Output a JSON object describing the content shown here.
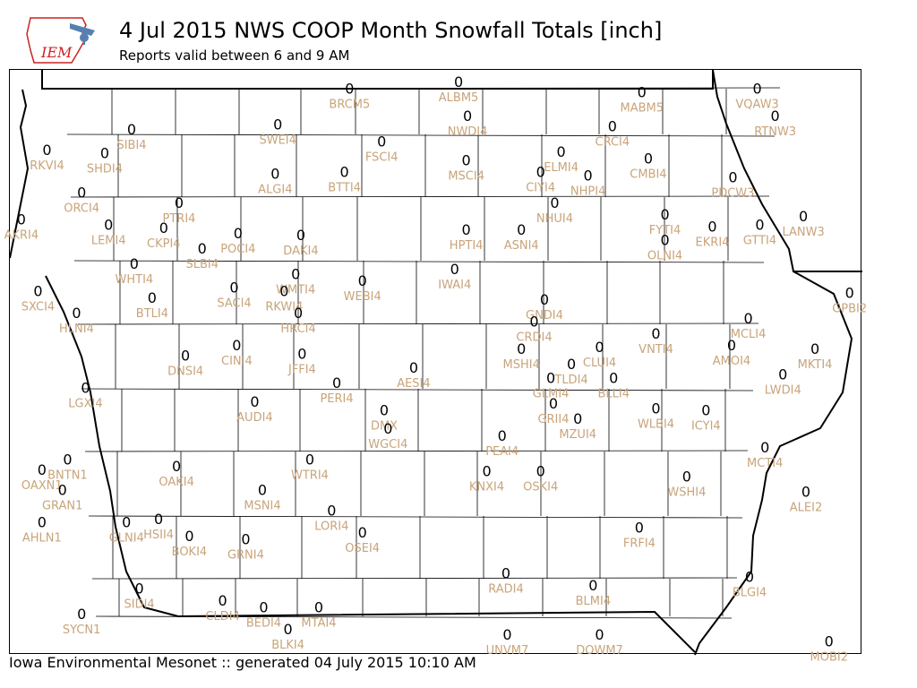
{
  "header": {
    "logo_text": "IEM",
    "title": "4 Jul 2015 NWS COOP Month Snowfall Totals [inch]",
    "subtitle": "Reports valid between 6 and 9 AM"
  },
  "footer": {
    "text": "Iowa Environmental Mesonet :: generated 04 July 2015 10:10 AM"
  },
  "colors": {
    "value": "#000000",
    "station": "#c8a47a",
    "logo_red": "#cc2222",
    "logo_blue": "#5580b0"
  },
  "stations": [
    {
      "id": "SIBI4",
      "value": "0",
      "x": -96.0,
      "y": 43.34
    },
    {
      "id": "BRCM5",
      "value": "0",
      "x": -94.3,
      "y": 43.58
    },
    {
      "id": "ALBM5",
      "value": "0",
      "x": -93.45,
      "y": 43.62
    },
    {
      "id": "NWDI4",
      "value": "0",
      "x": -93.38,
      "y": 43.42
    },
    {
      "id": "SWEI4",
      "value": "0",
      "x": -94.86,
      "y": 43.37
    },
    {
      "id": "MABM5",
      "value": "0",
      "x": -92.02,
      "y": 43.56
    },
    {
      "id": "VQAW3",
      "value": "0",
      "x": -91.12,
      "y": 43.58
    },
    {
      "id": "RTNW3",
      "value": "0",
      "x": -90.98,
      "y": 43.42
    },
    {
      "id": "CRCI4",
      "value": "0",
      "x": -92.25,
      "y": 43.36
    },
    {
      "id": "FSCI4",
      "value": "0",
      "x": -94.05,
      "y": 43.27
    },
    {
      "id": "ELMI4",
      "value": "0",
      "x": -92.65,
      "y": 43.21
    },
    {
      "id": "RKVI4",
      "value": "0",
      "x": -96.66,
      "y": 43.22
    },
    {
      "id": "SHDI4",
      "value": "0",
      "x": -96.21,
      "y": 43.2
    },
    {
      "id": "MSCI4",
      "value": "0",
      "x": -93.39,
      "y": 43.16
    },
    {
      "id": "CMBI4",
      "value": "0",
      "x": -91.97,
      "y": 43.17
    },
    {
      "id": "ALGI4",
      "value": "0",
      "x": -94.88,
      "y": 43.08
    },
    {
      "id": "BTTI4",
      "value": "0",
      "x": -94.34,
      "y": 43.09
    },
    {
      "id": "CIYI4",
      "value": "0",
      "x": -92.81,
      "y": 43.09
    },
    {
      "id": "NHPI4",
      "value": "0",
      "x": -92.44,
      "y": 43.07
    },
    {
      "id": "PDCW3",
      "value": "0",
      "x": -91.31,
      "y": 43.06
    },
    {
      "id": "ORCI4",
      "value": "0",
      "x": -96.39,
      "y": 42.97
    },
    {
      "id": "PTRI4",
      "value": "0",
      "x": -95.63,
      "y": 42.91
    },
    {
      "id": "NHUI4",
      "value": "0",
      "x": -92.7,
      "y": 42.91
    },
    {
      "id": "FYTI4",
      "value": "0",
      "x": -91.84,
      "y": 42.84
    },
    {
      "id": "AKRI4",
      "value": "0",
      "x": -96.86,
      "y": 42.81
    },
    {
      "id": "LEMI4",
      "value": "0",
      "x": -96.18,
      "y": 42.78
    },
    {
      "id": "CKPI4",
      "value": "0",
      "x": -95.75,
      "y": 42.76
    },
    {
      "id": "POCI4",
      "value": "0",
      "x": -95.17,
      "y": 42.73
    },
    {
      "id": "DAKI4",
      "value": "0",
      "x": -94.68,
      "y": 42.72
    },
    {
      "id": "HPTI4",
      "value": "0",
      "x": -93.39,
      "y": 42.75
    },
    {
      "id": "ASNI4",
      "value": "0",
      "x": -92.96,
      "y": 42.75
    },
    {
      "id": "EKRI4",
      "value": "0",
      "x": -91.47,
      "y": 42.77
    },
    {
      "id": "GTTI4",
      "value": "0",
      "x": -91.1,
      "y": 42.78
    },
    {
      "id": "LANW3",
      "value": "0",
      "x": -90.76,
      "y": 42.83
    },
    {
      "id": "OLNI4",
      "value": "0",
      "x": -91.84,
      "y": 42.69
    },
    {
      "id": "SLBI4",
      "value": "0",
      "x": -95.45,
      "y": 42.64
    },
    {
      "id": "WHTI4",
      "value": "0",
      "x": -95.98,
      "y": 42.55
    },
    {
      "id": "WMTI4",
      "value": "0",
      "x": -94.72,
      "y": 42.49
    },
    {
      "id": "IWAI4",
      "value": "0",
      "x": -93.48,
      "y": 42.52
    },
    {
      "id": "SXCI4",
      "value": "0",
      "x": -96.73,
      "y": 42.39
    },
    {
      "id": "BTLI4",
      "value": "0",
      "x": -95.84,
      "y": 42.35
    },
    {
      "id": "SACI4",
      "value": "0",
      "x": -95.2,
      "y": 42.41
    },
    {
      "id": "RKWI4",
      "value": "0",
      "x": -94.81,
      "y": 42.39
    },
    {
      "id": "WEBI4",
      "value": "0",
      "x": -94.2,
      "y": 42.45
    },
    {
      "id": "GPBI2",
      "value": "0",
      "x": -90.4,
      "y": 42.38
    },
    {
      "id": "GNDI4",
      "value": "0",
      "x": -92.78,
      "y": 42.34
    },
    {
      "id": "HLNI4",
      "value": "0",
      "x": -96.43,
      "y": 42.26
    },
    {
      "id": "HRCI4",
      "value": "0",
      "x": -94.7,
      "y": 42.26
    },
    {
      "id": "CRDI4",
      "value": "0",
      "x": -92.86,
      "y": 42.21
    },
    {
      "id": "MCLI4",
      "value": "0",
      "x": -91.19,
      "y": 42.23
    },
    {
      "id": "VNTI4",
      "value": "0",
      "x": -91.91,
      "y": 42.14
    },
    {
      "id": "CLUI4",
      "value": "0",
      "x": -92.35,
      "y": 42.06
    },
    {
      "id": "AMOI4",
      "value": "0",
      "x": -91.32,
      "y": 42.07
    },
    {
      "id": "MKTI4",
      "value": "0",
      "x": -90.67,
      "y": 42.05
    },
    {
      "id": "DNSI4",
      "value": "0",
      "x": -95.58,
      "y": 42.01
    },
    {
      "id": "CINI4",
      "value": "0",
      "x": -95.18,
      "y": 42.07
    },
    {
      "id": "JFFI4",
      "value": "0",
      "x": -94.67,
      "y": 42.02
    },
    {
      "id": "MSHI4",
      "value": "0",
      "x": -92.96,
      "y": 42.05
    },
    {
      "id": "TLDI4",
      "value": "0",
      "x": -92.57,
      "y": 41.96
    },
    {
      "id": "AESI4",
      "value": "0",
      "x": -93.8,
      "y": 41.94
    },
    {
      "id": "BLLI4",
      "value": "0",
      "x": -92.24,
      "y": 41.88
    },
    {
      "id": "PERI4",
      "value": "0",
      "x": -94.4,
      "y": 41.85
    },
    {
      "id": "GLMI4",
      "value": "0",
      "x": -92.73,
      "y": 41.88
    },
    {
      "id": "LWDI4",
      "value": "0",
      "x": -90.92,
      "y": 41.9
    },
    {
      "id": "LGXI4",
      "value": "0",
      "x": -96.36,
      "y": 41.82
    },
    {
      "id": "AUDI4",
      "value": "0",
      "x": -95.04,
      "y": 41.74
    },
    {
      "id": "DMX",
      "value": "0",
      "x": -94.03,
      "y": 41.69
    },
    {
      "id": "GRII4",
      "value": "0",
      "x": -92.71,
      "y": 41.73
    },
    {
      "id": "WLBI4",
      "value": "0",
      "x": -91.91,
      "y": 41.7
    },
    {
      "id": "ICYI4",
      "value": "0",
      "x": -91.52,
      "y": 41.69
    },
    {
      "id": "MZUI4",
      "value": "0",
      "x": -92.52,
      "y": 41.64
    },
    {
      "id": "WGCI4",
      "value": "0",
      "x": -94.0,
      "y": 41.58
    },
    {
      "id": "PEAI4",
      "value": "0",
      "x": -93.11,
      "y": 41.54
    },
    {
      "id": "MCTI4",
      "value": "0",
      "x": -91.06,
      "y": 41.47
    },
    {
      "id": "BNTN1",
      "value": "0",
      "x": -96.5,
      "y": 41.4
    },
    {
      "id": "OAXN1",
      "value": "0",
      "x": -96.7,
      "y": 41.34
    },
    {
      "id": "OAKI4",
      "value": "0",
      "x": -95.65,
      "y": 41.36
    },
    {
      "id": "WTRI4",
      "value": "0",
      "x": -94.61,
      "y": 41.4
    },
    {
      "id": "KNXI4",
      "value": "0",
      "x": -93.23,
      "y": 41.33
    },
    {
      "id": "OSKI4",
      "value": "0",
      "x": -92.81,
      "y": 41.33
    },
    {
      "id": "WSHI4",
      "value": "0",
      "x": -91.67,
      "y": 41.3
    },
    {
      "id": "GRAN1",
      "value": "0",
      "x": -96.54,
      "y": 41.22
    },
    {
      "id": "MSNI4",
      "value": "0",
      "x": -94.98,
      "y": 41.22
    },
    {
      "id": "ALEI2",
      "value": "0",
      "x": -90.74,
      "y": 41.21
    },
    {
      "id": "LORI4",
      "value": "0",
      "x": -94.44,
      "y": 41.1
    },
    {
      "id": "GLNI4",
      "value": "0",
      "x": -96.04,
      "y": 41.03
    },
    {
      "id": "HSII4",
      "value": "0",
      "x": -95.79,
      "y": 41.05
    },
    {
      "id": "AHLN1",
      "value": "0",
      "x": -96.7,
      "y": 41.03
    },
    {
      "id": "BOKI4",
      "value": "0",
      "x": -95.55,
      "y": 40.95
    },
    {
      "id": "GRNI4",
      "value": "0",
      "x": -95.11,
      "y": 40.93
    },
    {
      "id": "OSEI4",
      "value": "0",
      "x": -94.2,
      "y": 40.97
    },
    {
      "id": "FRFI4",
      "value": "0",
      "x": -92.04,
      "y": 41.0
    },
    {
      "id": "RADI4",
      "value": "0",
      "x": -93.08,
      "y": 40.73
    },
    {
      "id": "BLMI4",
      "value": "0",
      "x": -92.4,
      "y": 40.66
    },
    {
      "id": "BLGI4",
      "value": "0",
      "x": -91.18,
      "y": 40.71
    },
    {
      "id": "SIDI4",
      "value": "0",
      "x": -95.94,
      "y": 40.64
    },
    {
      "id": "CLDI4",
      "value": "0",
      "x": -95.29,
      "y": 40.57
    },
    {
      "id": "BEDI4",
      "value": "0",
      "x": -94.97,
      "y": 40.53
    },
    {
      "id": "MTAI4",
      "value": "0",
      "x": -94.54,
      "y": 40.53
    },
    {
      "id": "BLKI4",
      "value": "0",
      "x": -94.78,
      "y": 40.4
    },
    {
      "id": "SYCN1",
      "value": "0",
      "x": -96.39,
      "y": 40.49
    },
    {
      "id": "UNVM7",
      "value": "0",
      "x": -93.07,
      "y": 40.37
    },
    {
      "id": "DOWM7",
      "value": "0",
      "x": -92.35,
      "y": 40.37
    },
    {
      "id": "MOBI2",
      "value": "0",
      "x": -90.56,
      "y": 40.33
    }
  ]
}
